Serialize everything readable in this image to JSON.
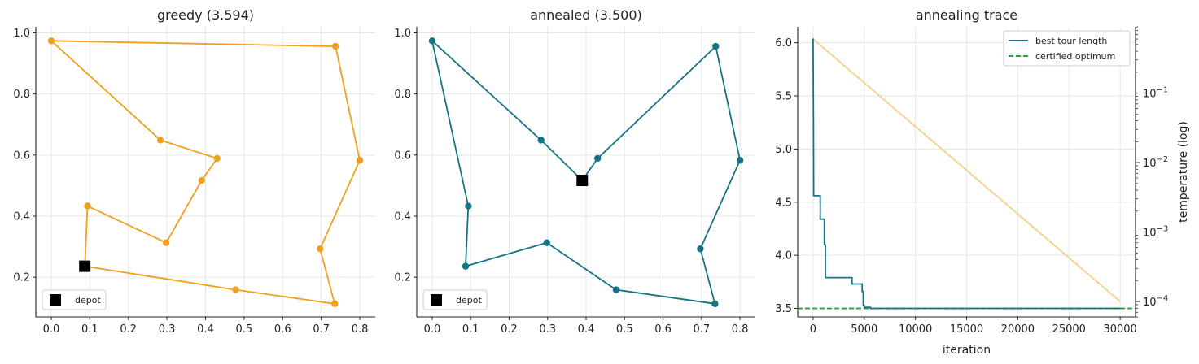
{
  "chart_data": [
    {
      "type": "line",
      "title": "greedy (3.594)",
      "color": "#f0a01e",
      "xlim": [
        -0.04,
        0.84
      ],
      "ylim": [
        0.07,
        1.02
      ],
      "xticks": [
        0.0,
        0.1,
        0.2,
        0.3,
        0.4,
        0.5,
        0.6,
        0.7,
        0.8
      ],
      "yticks": [
        0.2,
        0.4,
        0.6,
        0.8,
        1.0
      ],
      "grid": true,
      "legend": {
        "position": "bottom-left",
        "entries": [
          "depot"
        ]
      },
      "depot": [
        0.087,
        0.236
      ],
      "tour": [
        [
          0.087,
          0.236
        ],
        [
          0.478,
          0.159
        ],
        [
          0.735,
          0.113
        ],
        [
          0.697,
          0.293
        ],
        [
          0.8,
          0.583
        ],
        [
          0.737,
          0.956
        ],
        [
          0.0,
          0.974
        ],
        [
          0.283,
          0.649
        ],
        [
          0.43,
          0.589
        ],
        [
          0.39,
          0.517
        ],
        [
          0.298,
          0.313
        ],
        [
          0.094,
          0.433
        ],
        [
          0.087,
          0.236
        ]
      ]
    },
    {
      "type": "line",
      "title": "annealed (3.500)",
      "color": "#147384",
      "xlim": [
        -0.04,
        0.84
      ],
      "ylim": [
        0.07,
        1.02
      ],
      "xticks": [
        0.0,
        0.1,
        0.2,
        0.3,
        0.4,
        0.5,
        0.6,
        0.7,
        0.8
      ],
      "yticks": [
        0.2,
        0.4,
        0.6,
        0.8,
        1.0
      ],
      "grid": true,
      "legend": {
        "position": "bottom-left",
        "entries": [
          "depot"
        ]
      },
      "depot": [
        0.39,
        0.517
      ],
      "tour": [
        [
          0.39,
          0.517
        ],
        [
          0.43,
          0.589
        ],
        [
          0.737,
          0.956
        ],
        [
          0.8,
          0.583
        ],
        [
          0.697,
          0.293
        ],
        [
          0.735,
          0.113
        ],
        [
          0.478,
          0.159
        ],
        [
          0.298,
          0.313
        ],
        [
          0.087,
          0.236
        ],
        [
          0.094,
          0.433
        ],
        [
          0.0,
          0.974
        ],
        [
          0.283,
          0.649
        ],
        [
          0.39,
          0.517
        ]
      ]
    },
    {
      "type": "line",
      "title": "annealing trace",
      "xlabel": "iteration",
      "ylabel_right": "temperature (log)",
      "xlim": [
        -1500,
        31500
      ],
      "ylim": [
        3.42,
        6.15
      ],
      "xticks": [
        0,
        5000,
        10000,
        15000,
        20000,
        25000,
        30000
      ],
      "yticks": [
        3.5,
        4.0,
        4.5,
        5.0,
        5.5,
        6.0
      ],
      "y2_scale": "log",
      "y2lim": [
        6e-05,
        0.9
      ],
      "y2ticks": [
        {
          "value": 0.0001,
          "base": "10",
          "exp": "−4"
        },
        {
          "value": 0.001,
          "base": "10",
          "exp": "−3"
        },
        {
          "value": 0.01,
          "base": "10",
          "exp": "−2"
        },
        {
          "value": 0.1,
          "base": "10",
          "exp": "−1"
        }
      ],
      "grid": true,
      "legend": {
        "position": "top-right",
        "entries": [
          "best tour length",
          "certified optimum"
        ]
      },
      "series": [
        {
          "name": "best tour length",
          "color": "#147384",
          "step": [
            [
              0,
              6.04
            ],
            [
              20,
              5.7
            ],
            [
              40,
              5.15
            ],
            [
              60,
              4.56
            ],
            [
              700,
              4.56
            ],
            [
              700,
              4.34
            ],
            [
              1100,
              4.34
            ],
            [
              1100,
              4.1
            ],
            [
              1200,
              4.1
            ],
            [
              1200,
              3.79
            ],
            [
              3800,
              3.79
            ],
            [
              3800,
              3.73
            ],
            [
              4800,
              3.73
            ],
            [
              4800,
              3.66
            ],
            [
              4900,
              3.66
            ],
            [
              4900,
              3.53
            ],
            [
              5000,
              3.53
            ],
            [
              5000,
              3.51
            ],
            [
              5600,
              3.51
            ],
            [
              5600,
              3.5
            ],
            [
              30000,
              3.5
            ]
          ]
        },
        {
          "name": "certified optimum",
          "color": "#2aa340",
          "value": 3.5
        },
        {
          "name": "temperature",
          "color": "#f6cf88",
          "axis": "right",
          "points": [
            [
              0,
              0.6
            ],
            [
              30000,
              0.0001
            ]
          ]
        }
      ]
    }
  ]
}
